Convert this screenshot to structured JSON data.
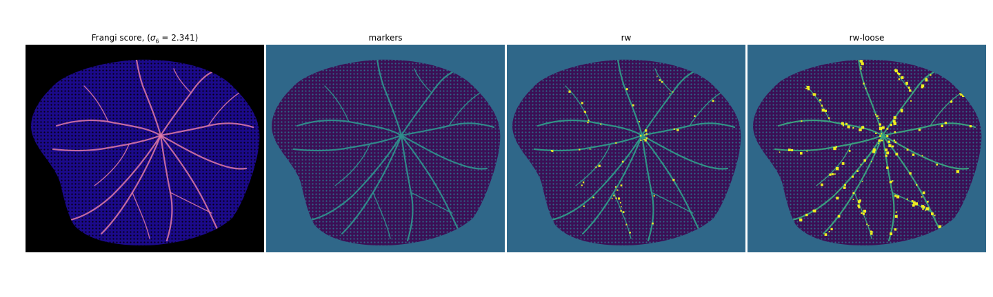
{
  "panels": [
    {
      "title": "Frangi score, (",
      "sigma_symbol": "σ",
      "sigma_sub": "6",
      "sigma_value": " = 2.341)",
      "background": "#000000",
      "blob": "#1b0a8a",
      "vein": "#e07aa8",
      "mesh": "#050010"
    },
    {
      "title": "markers",
      "background": "#2f6789",
      "blob": "#3b0f55",
      "vein": "#2f8f8c",
      "mesh": "#2f6789"
    },
    {
      "title": "rw",
      "background": "#2f6789",
      "blob": "#3b0f55",
      "vein": "#2f9a88",
      "mesh": "#2f6789",
      "accent": "#e8e82a"
    },
    {
      "title": "rw-loose",
      "background": "#2f6789",
      "blob": "#3b0f55",
      "vein": "#3aa57f",
      "mesh": "#2f6789",
      "accent": "#f0f020"
    }
  ]
}
